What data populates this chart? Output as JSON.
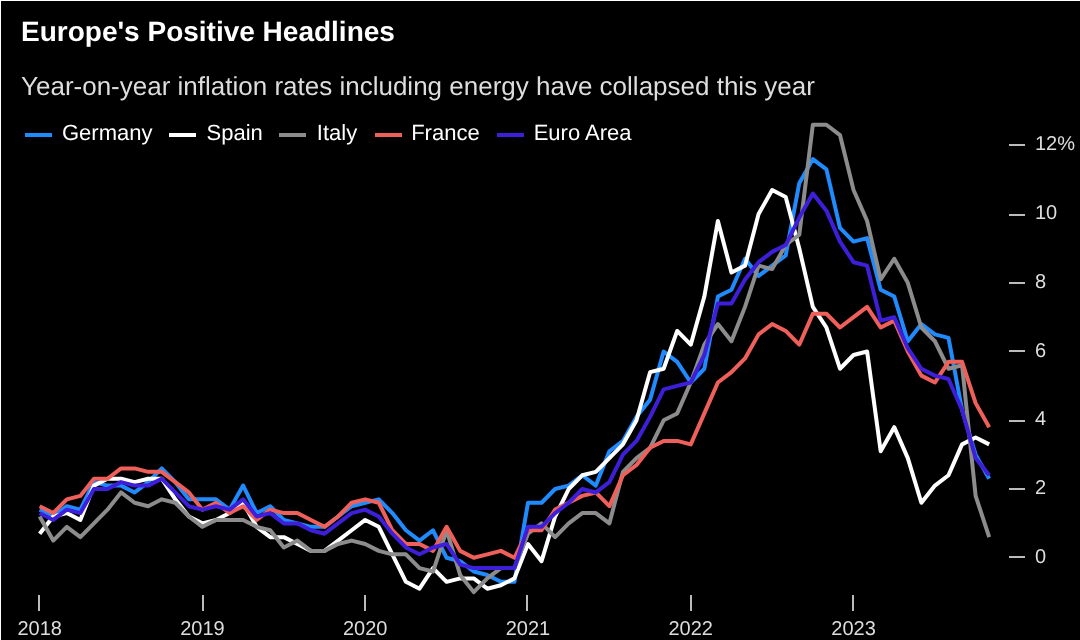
{
  "chart_data": {
    "type": "line",
    "title": "Europe's Positive Headlines",
    "subtitle": "Year-on-year inflation rates including energy have collapsed this year",
    "x": [
      "2018-01",
      "2018-02",
      "2018-03",
      "2018-04",
      "2018-05",
      "2018-06",
      "2018-07",
      "2018-08",
      "2018-09",
      "2018-10",
      "2018-11",
      "2018-12",
      "2019-01",
      "2019-02",
      "2019-03",
      "2019-04",
      "2019-05",
      "2019-06",
      "2019-07",
      "2019-08",
      "2019-09",
      "2019-10",
      "2019-11",
      "2019-12",
      "2020-01",
      "2020-02",
      "2020-03",
      "2020-04",
      "2020-05",
      "2020-06",
      "2020-07",
      "2020-08",
      "2020-09",
      "2020-10",
      "2020-11",
      "2020-12",
      "2021-01",
      "2021-02",
      "2021-03",
      "2021-04",
      "2021-05",
      "2021-06",
      "2021-07",
      "2021-08",
      "2021-09",
      "2021-10",
      "2021-11",
      "2021-12",
      "2022-01",
      "2022-02",
      "2022-03",
      "2022-04",
      "2022-05",
      "2022-06",
      "2022-07",
      "2022-08",
      "2022-09",
      "2022-10",
      "2022-11",
      "2022-12",
      "2023-01",
      "2023-02",
      "2023-03",
      "2023-04",
      "2023-05",
      "2023-06",
      "2023-07",
      "2023-08",
      "2023-09",
      "2023-10",
      "2023-11"
    ],
    "series": [
      {
        "name": "Germany",
        "color": "#1f8bff",
        "values": [
          1.4,
          1.2,
          1.5,
          1.4,
          2.2,
          2.1,
          2.1,
          1.9,
          2.2,
          2.6,
          2.2,
          1.7,
          1.7,
          1.7,
          1.4,
          2.1,
          1.3,
          1.5,
          1.1,
          1.0,
          0.9,
          0.9,
          1.2,
          1.5,
          1.6,
          1.7,
          1.3,
          0.8,
          0.5,
          0.8,
          0.0,
          -0.1,
          -0.4,
          -0.5,
          -0.7,
          -0.7,
          1.6,
          1.6,
          2.0,
          2.1,
          2.4,
          2.1,
          3.1,
          3.4,
          4.1,
          4.6,
          6.0,
          5.7,
          5.1,
          5.5,
          7.6,
          7.8,
          8.7,
          8.2,
          8.5,
          8.8,
          10.9,
          11.6,
          11.3,
          9.6,
          9.2,
          9.3,
          7.8,
          7.6,
          6.3,
          6.8,
          6.5,
          6.4,
          4.3,
          3.0,
          2.3
        ]
      },
      {
        "name": "Spain",
        "color": "#ffffff",
        "values": [
          0.7,
          1.2,
          1.3,
          1.1,
          2.1,
          2.3,
          2.3,
          2.2,
          2.3,
          2.3,
          1.7,
          1.2,
          1.0,
          1.1,
          1.3,
          1.6,
          0.9,
          0.6,
          0.6,
          0.4,
          0.2,
          0.2,
          0.5,
          0.8,
          1.1,
          0.9,
          0.1,
          -0.7,
          -0.9,
          -0.3,
          -0.7,
          -0.6,
          -0.6,
          -0.9,
          -0.8,
          -0.6,
          0.4,
          -0.1,
          1.2,
          2.0,
          2.4,
          2.5,
          2.9,
          3.3,
          4.0,
          5.4,
          5.5,
          6.6,
          6.2,
          7.6,
          9.8,
          8.3,
          8.5,
          10.0,
          10.7,
          10.5,
          9.0,
          7.3,
          6.7,
          5.5,
          5.9,
          6.0,
          3.1,
          3.8,
          2.9,
          1.6,
          2.1,
          2.4,
          3.3,
          3.5,
          3.3
        ]
      },
      {
        "name": "Italy",
        "color": "#8c8c8c",
        "values": [
          1.2,
          0.5,
          0.9,
          0.6,
          1.0,
          1.4,
          1.9,
          1.6,
          1.5,
          1.7,
          1.6,
          1.2,
          0.9,
          1.1,
          1.1,
          1.1,
          0.9,
          0.8,
          0.3,
          0.5,
          0.2,
          0.2,
          0.4,
          0.5,
          0.4,
          0.2,
          0.1,
          0.1,
          -0.3,
          -0.4,
          0.8,
          -0.5,
          -1.0,
          -0.6,
          -0.3,
          -0.3,
          0.7,
          1.0,
          0.6,
          1.0,
          1.3,
          1.3,
          1.0,
          2.5,
          2.9,
          3.2,
          4.0,
          4.2,
          5.1,
          6.2,
          6.8,
          6.3,
          7.3,
          8.5,
          8.4,
          9.1,
          9.4,
          12.6,
          12.6,
          12.3,
          10.7,
          9.8,
          8.1,
          8.7,
          8.0,
          6.7,
          6.3,
          5.5,
          5.6,
          1.8,
          0.6
        ]
      },
      {
        "name": "France",
        "color": "#f0605a",
        "values": [
          1.5,
          1.3,
          1.7,
          1.8,
          2.3,
          2.3,
          2.6,
          2.6,
          2.5,
          2.5,
          2.2,
          1.9,
          1.4,
          1.6,
          1.3,
          1.5,
          1.1,
          1.4,
          1.3,
          1.3,
          1.1,
          0.9,
          1.2,
          1.6,
          1.7,
          1.6,
          0.8,
          0.4,
          0.4,
          0.2,
          0.9,
          0.2,
          0.0,
          0.1,
          0.2,
          0.0,
          0.8,
          0.8,
          1.4,
          1.6,
          1.8,
          1.9,
          1.5,
          2.4,
          2.7,
          3.2,
          3.4,
          3.4,
          3.3,
          4.2,
          5.1,
          5.4,
          5.8,
          6.5,
          6.8,
          6.6,
          6.2,
          7.1,
          7.1,
          6.7,
          7.0,
          7.3,
          6.7,
          6.9,
          6.0,
          5.3,
          5.1,
          5.7,
          5.7,
          4.5,
          3.8
        ]
      },
      {
        "name": "Euro Area",
        "color": "#3d1fd9",
        "values": [
          1.3,
          1.1,
          1.4,
          1.3,
          2.0,
          2.0,
          2.2,
          2.1,
          2.1,
          2.3,
          1.9,
          1.5,
          1.4,
          1.5,
          1.4,
          1.7,
          1.2,
          1.3,
          1.0,
          1.0,
          0.8,
          0.7,
          1.0,
          1.3,
          1.4,
          1.2,
          0.7,
          0.3,
          0.1,
          0.3,
          0.4,
          -0.2,
          -0.3,
          -0.3,
          -0.3,
          -0.3,
          0.9,
          0.9,
          1.3,
          1.6,
          2.0,
          1.9,
          2.2,
          3.0,
          3.4,
          4.1,
          4.9,
          5.0,
          5.1,
          5.9,
          7.4,
          7.4,
          8.1,
          8.6,
          8.9,
          9.1,
          9.9,
          10.6,
          10.1,
          9.2,
          8.6,
          8.5,
          6.9,
          7.0,
          6.1,
          5.5,
          5.3,
          5.2,
          4.3,
          2.9,
          2.4
        ]
      }
    ],
    "xlim": [
      "2017-11-20",
      "2023-12-15"
    ],
    "xticks": [
      "2018",
      "2019",
      "2020",
      "2021",
      "2022",
      "2023"
    ],
    "ylim": [
      -1.2,
      13
    ],
    "yticks": [
      0,
      2,
      4,
      6,
      8,
      10,
      {
        "value": 12,
        "label": "12%"
      }
    ],
    "legend": "top left",
    "line_style": "solid"
  }
}
